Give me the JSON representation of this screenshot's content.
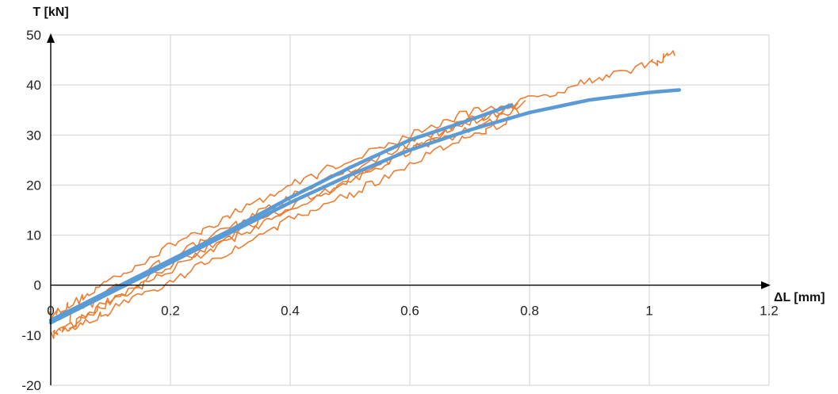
{
  "chart_data": {
    "type": "line",
    "xlabel": "ΔL [mm]",
    "ylabel": "T [kN]",
    "xlim": [
      0,
      1.2
    ],
    "ylim": [
      -20,
      50
    ],
    "xticks": [
      0,
      0.2,
      0.4,
      0.6,
      0.8,
      1,
      1.2
    ],
    "yticks": [
      -20,
      -10,
      0,
      10,
      20,
      30,
      40,
      50
    ],
    "xtick_labels": [
      "0",
      "0.2",
      "0.4",
      "0.6",
      "0.8",
      "1",
      "1.2"
    ],
    "ytick_labels": [
      "-20",
      "-10",
      "0",
      "10",
      "20",
      "30",
      "40",
      "50"
    ],
    "grid": true,
    "legend": "none",
    "colors": {
      "experimental": "#ED7D31",
      "model": "#5B9BD5",
      "grid": "#D0D0D0",
      "axis": "#000000"
    },
    "series": [
      {
        "color": "#ED7D31",
        "style": "noisy",
        "x": [
          0.0,
          0.03,
          0.1,
          0.2,
          0.3,
          0.4,
          0.5,
          0.6,
          0.7,
          0.8,
          0.9,
          1.0,
          1.04
        ],
        "y": [
          -6,
          -4,
          1,
          8,
          14,
          20,
          25,
          30,
          34.5,
          37,
          41,
          44,
          46.5
        ]
      },
      {
        "color": "#ED7D31",
        "style": "noisy",
        "x": [
          0.78,
          0.7,
          0.6,
          0.5,
          0.4,
          0.3,
          0.2,
          0.1,
          0.03,
          0.0
        ],
        "y": [
          36,
          33,
          27,
          21,
          15,
          9,
          3,
          -3.5,
          -8.5,
          -10
        ]
      },
      {
        "color": "#ED7D31",
        "style": "noisy",
        "x": [
          0.02,
          0.1,
          0.2,
          0.3,
          0.4,
          0.5,
          0.6,
          0.7,
          0.78
        ],
        "y": [
          -9,
          -3,
          4,
          10,
          16,
          21,
          27,
          31,
          35
        ]
      },
      {
        "color": "#ED7D31",
        "style": "noisy",
        "x": [
          0.77,
          0.7,
          0.6,
          0.5,
          0.4,
          0.3,
          0.2,
          0.1,
          0.03
        ],
        "y": [
          33,
          30,
          24,
          18,
          13,
          7,
          1,
          -5,
          -9.5
        ]
      },
      {
        "color": "#ED7D31",
        "style": "noisy",
        "x": [
          0.03,
          0.1,
          0.2,
          0.3,
          0.4,
          0.5,
          0.6,
          0.7,
          0.79
        ],
        "y": [
          -7,
          -1,
          5.5,
          11.5,
          17.5,
          23,
          28.5,
          32.5,
          36.5
        ]
      },
      {
        "color": "#5B9BD5",
        "style": "smooth",
        "x": [
          0.0,
          0.1,
          0.2,
          0.3,
          0.4,
          0.5,
          0.6,
          0.7,
          0.8,
          0.9,
          1.0,
          1.05
        ],
        "y": [
          -7.5,
          -1.5,
          4.5,
          10.5,
          16.5,
          22,
          27,
          31,
          34.5,
          37,
          38.5,
          39
        ]
      },
      {
        "color": "#5B9BD5",
        "style": "smooth",
        "x": [
          0.0,
          0.1,
          0.2,
          0.3,
          0.4,
          0.5,
          0.6,
          0.7,
          0.77
        ],
        "y": [
          -7,
          -1,
          5,
          11,
          17.5,
          23.5,
          29,
          33,
          36
        ]
      }
    ]
  }
}
